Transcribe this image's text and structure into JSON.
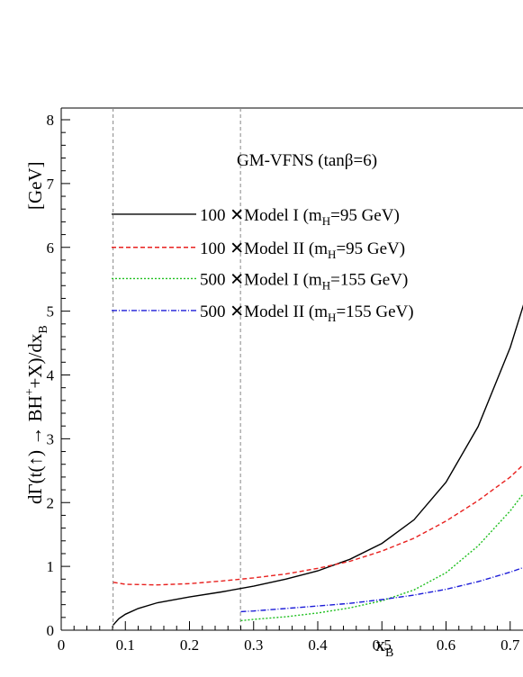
{
  "chart_data": {
    "type": "line",
    "annotation": "GM-VFNS (tanβ=6)",
    "xlabel": "x",
    "xlabel_sub": "B",
    "ylabel_parts": {
      "a": "dΓ(t(",
      "b": ") → BH",
      "c": "+",
      "d": "+X)/dx",
      "e": "B",
      "unit": "[GeV]"
    },
    "xlim": [
      0,
      0.74
    ],
    "ylim": [
      0,
      8.2
    ],
    "x_ticks": [
      "0",
      "0.1",
      "0.2",
      "0.3",
      "0.4",
      "0.5",
      "0.6",
      "0.7"
    ],
    "y_ticks": [
      "0",
      "1",
      "2",
      "3",
      "4",
      "5",
      "6",
      "7",
      "8"
    ],
    "vlines": [
      0.0809,
      0.2795
    ],
    "series": [
      {
        "name": "100 ✕Model I (m",
        "name_sub": "H",
        "name_tail": "=95 GeV)",
        "color": "#000000",
        "dash": "",
        "legend_y": 6.52,
        "x": [
          0.081,
          0.09,
          0.1,
          0.12,
          0.15,
          0.2,
          0.25,
          0.3,
          0.35,
          0.4,
          0.45,
          0.5,
          0.55,
          0.6,
          0.65,
          0.7,
          0.74
        ],
        "y": [
          0.08,
          0.18,
          0.25,
          0.34,
          0.43,
          0.52,
          0.6,
          0.69,
          0.8,
          0.93,
          1.11,
          1.36,
          1.73,
          2.32,
          3.19,
          4.43,
          5.72
        ]
      },
      {
        "name": "100 ✕Model II (m",
        "name_sub": "H",
        "name_tail": "=95 GeV)",
        "color": "#e8201e",
        "dash": "5,3",
        "legend_y": 6.0,
        "x": [
          0.081,
          0.1,
          0.15,
          0.2,
          0.25,
          0.3,
          0.35,
          0.4,
          0.45,
          0.5,
          0.55,
          0.6,
          0.65,
          0.7,
          0.74
        ],
        "y": [
          0.75,
          0.72,
          0.71,
          0.73,
          0.77,
          0.82,
          0.88,
          0.97,
          1.08,
          1.24,
          1.44,
          1.71,
          2.03,
          2.4,
          2.78
        ]
      },
      {
        "name": "500 ✕Model I (m",
        "name_sub": "H",
        "name_tail": "=155 GeV)",
        "color": "#20c020",
        "dash": "2,2",
        "legend_y": 5.51,
        "x": [
          0.28,
          0.3,
          0.35,
          0.4,
          0.45,
          0.5,
          0.55,
          0.6,
          0.65,
          0.7,
          0.74
        ],
        "y": [
          0.15,
          0.17,
          0.21,
          0.27,
          0.35,
          0.46,
          0.63,
          0.9,
          1.32,
          1.87,
          2.4
        ]
      },
      {
        "name": "500 ✕Model II (m",
        "name_sub": "H",
        "name_tail": "=155 GeV)",
        "color": "#1a1ad8",
        "dash": "6,2,1,2",
        "legend_y": 5.01,
        "x": [
          0.28,
          0.3,
          0.35,
          0.4,
          0.45,
          0.5,
          0.55,
          0.6,
          0.65,
          0.7,
          0.74
        ],
        "y": [
          0.29,
          0.3,
          0.34,
          0.38,
          0.42,
          0.48,
          0.55,
          0.64,
          0.76,
          0.91,
          1.05
        ]
      }
    ]
  }
}
